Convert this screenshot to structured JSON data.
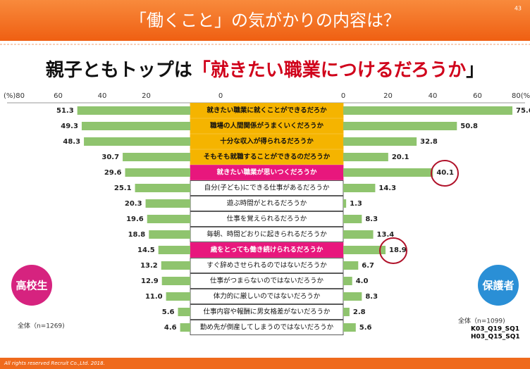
{
  "header": {
    "title": "「働くこと」の気がかりの内容は？",
    "page": "43"
  },
  "chart_data": {
    "type": "butterfly",
    "subtitle": [
      "親子ともトップは",
      "「就きたい職業につけるだろうか",
      "」"
    ],
    "categories": [
      "就きたい職業に就くことができるだろか",
      "職場の人間関係がうまくいくだろうか",
      "十分な収入が得られるだろうか",
      "そもそも就職することができるのだろうか",
      "就きたい職業が思いつくだろうか",
      "自分(子ども)にできる仕事があるだろうか",
      "遊ぶ時間がとれるだろうか",
      "仕事を覚えられるだろうか",
      "毎朝、時間どおりに起きられるだろうか",
      "歳をとっても働き続けられるだろうか",
      "すぐ辞めさせられるのではないだろうか",
      "仕事がつまらないのではないだろうか",
      "体力的に厳しいのではないだろうか",
      "仕事内容や報酬に男女格差がないだろうか",
      "勤め先が倒産してしまうのではないだろうか"
    ],
    "category_colors": [
      "#f5b400",
      "#f5b400",
      "#f5b400",
      "#f5b400",
      "#e8177d",
      "#ffffff",
      "#ffffff",
      "#ffffff",
      "#ffffff",
      "#e8177d",
      "#ffffff",
      "#ffffff",
      "#ffffff",
      "#ffffff",
      "#ffffff"
    ],
    "series": [
      {
        "name": "高校生",
        "color": "#8fc46e",
        "badge_color": "#d6237f",
        "note": "全体（n=1269)",
        "values": [
          51.3,
          49.3,
          48.3,
          30.7,
          29.6,
          25.1,
          20.3,
          19.6,
          18.8,
          14.5,
          13.2,
          12.9,
          11.0,
          5.6,
          4.6
        ],
        "value_labels": [
          "51.3",
          "49.3",
          "48.3",
          "30.7",
          "29.6",
          "25.1",
          "20.3",
          "19.6",
          "18.8",
          "14.5",
          "13.2",
          "12.9",
          "11.0",
          "5.6",
          "4.6"
        ]
      },
      {
        "name": "保護者",
        "color": "#8fc46e",
        "badge_color": "#2a8fd6",
        "note": "全体（n=1099)",
        "values": [
          75.6,
          50.8,
          32.8,
          20.1,
          40.1,
          14.3,
          1.3,
          8.3,
          13.4,
          18.9,
          6.7,
          4.0,
          8.3,
          2.8,
          5.6
        ],
        "value_labels": [
          "75.6",
          "50.8",
          "32.8",
          "20.1",
          "40.1",
          "14.3",
          "1.3",
          "8.3",
          "13.4",
          "18.9",
          "6.7",
          "4.0",
          "8.3",
          "2.8",
          "5.6"
        ]
      }
    ],
    "xlim": [
      0,
      80
    ],
    "xticks_left": [
      {
        "value": 80,
        "label": "(%)80"
      },
      60,
      40,
      20,
      0
    ],
    "xticks_right": [
      0,
      20,
      40,
      60,
      {
        "value": 80,
        "label": "80(%)"
      }
    ],
    "codes": [
      "K03_Q19_SQ1",
      "H03_Q15_SQ1"
    ]
  },
  "footer": "All rights reserved Recruit Co.,Ltd. 2018."
}
